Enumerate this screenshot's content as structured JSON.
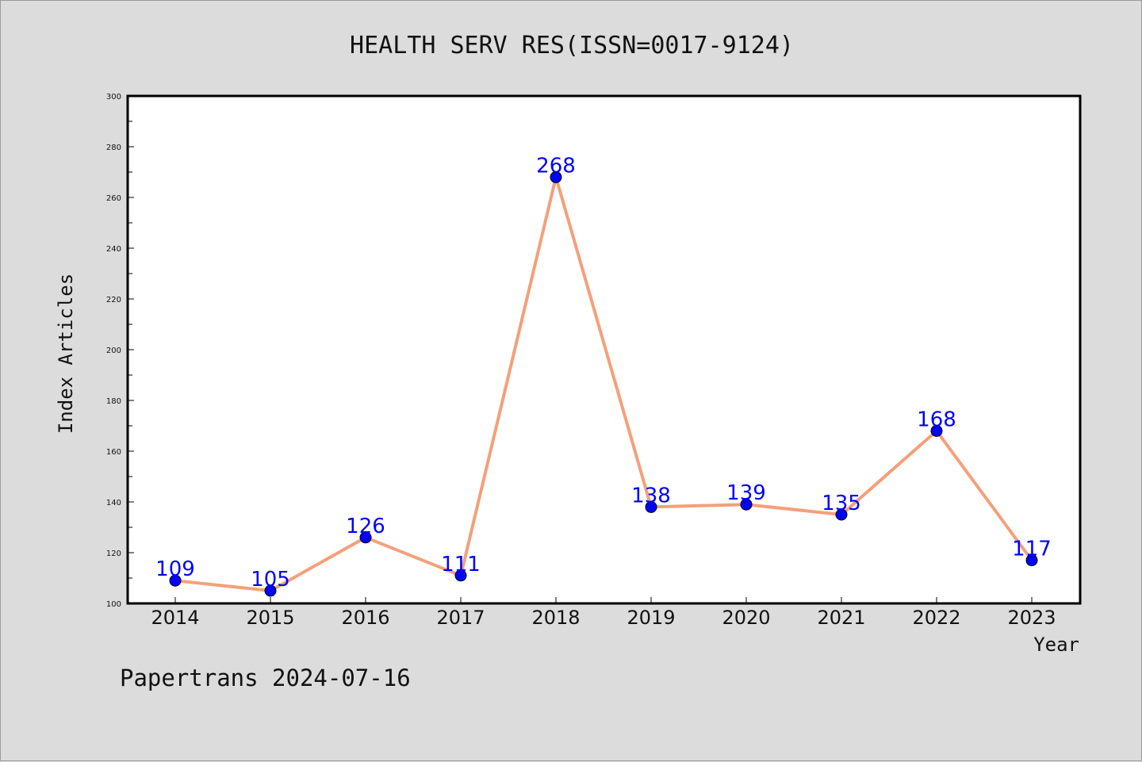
{
  "chart_data": {
    "type": "line",
    "title": "HEALTH SERV RES(ISSN=0017-9124)",
    "xlabel": "Year",
    "ylabel": "Index Articles",
    "categories": [
      "2014",
      "2015",
      "2016",
      "2017",
      "2018",
      "2019",
      "2020",
      "2021",
      "2022",
      "2023"
    ],
    "series": [
      {
        "values": [
          109,
          105,
          126,
          111,
          268,
          138,
          139,
          135,
          168,
          117
        ]
      }
    ],
    "data_labels": [
      "109",
      "105",
      "126",
      "111",
      "268",
      "138",
      "139",
      "135",
      "168",
      "117"
    ],
    "ylim": [
      100,
      300
    ],
    "yticks": [
      100,
      120,
      140,
      160,
      180,
      200,
      220,
      240,
      260,
      280,
      300
    ],
    "ytick_labels": [
      "100",
      "120",
      "140",
      "160",
      "180",
      "200",
      "220",
      "240",
      "260",
      "280",
      "300"
    ],
    "grid": false,
    "colors": {
      "line": "#f4a07a",
      "marker": "#0000ff",
      "data_label": "#0000ff",
      "plot_background": "#ffffff",
      "figure_background": "#dcdcdc"
    }
  },
  "footer": "Papertrans 2024-07-16"
}
